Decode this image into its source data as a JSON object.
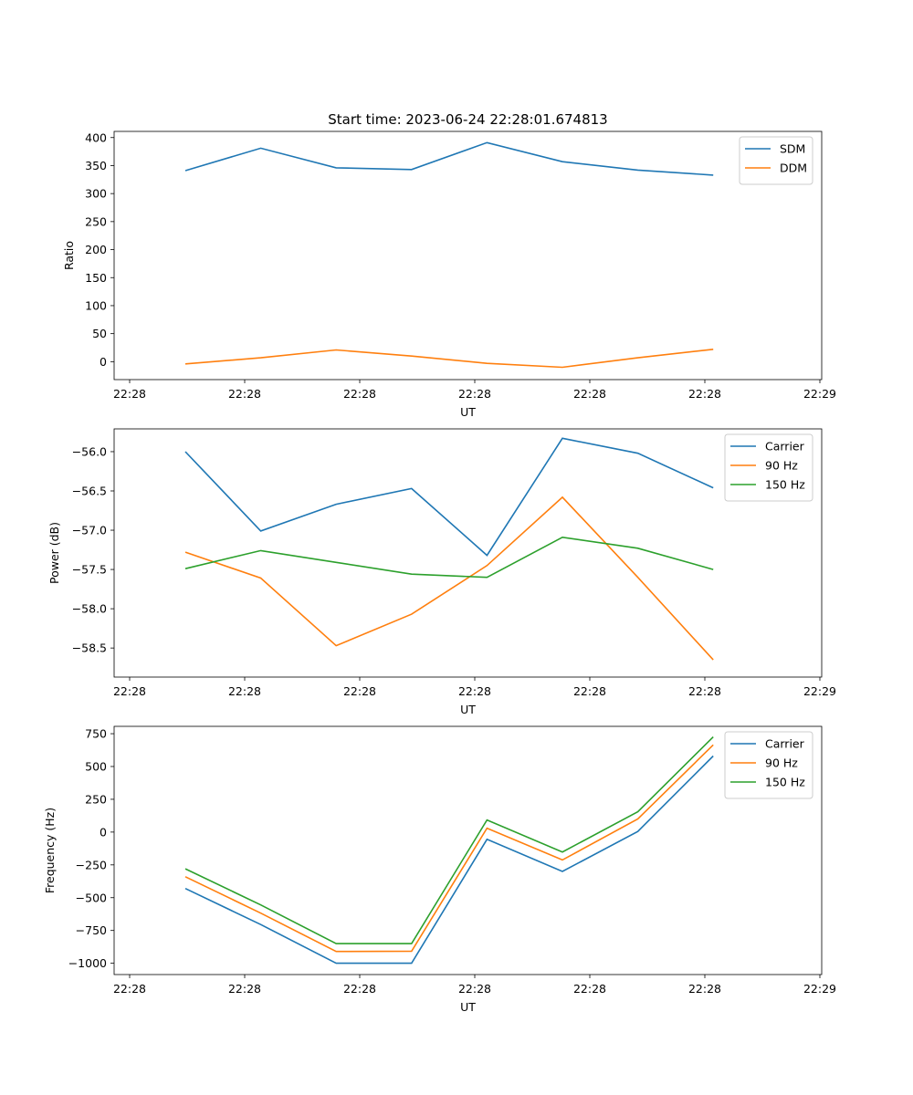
{
  "figure": {
    "title": "Start time: 2023-06-24 22:28:01.674813"
  },
  "chart_data": [
    {
      "type": "line",
      "ylabel": "Ratio",
      "xlabel": "UT",
      "ylim": [
        -32,
        411
      ],
      "yticks": [
        0,
        50,
        100,
        150,
        200,
        250,
        300,
        350,
        400
      ],
      "xtick_labels": [
        "22:28",
        "22:28",
        "22:28",
        "22:28",
        "22:28",
        "22:28",
        "22:28",
        "22:29"
      ],
      "legend": "top-right",
      "x": [
        1,
        2,
        3,
        4,
        5,
        6,
        7,
        8
      ],
      "series": [
        {
          "name": "SDM",
          "color": "#1f77b4",
          "values": [
            341,
            381,
            346,
            343,
            391,
            357,
            342,
            333
          ]
        },
        {
          "name": "DDM",
          "color": "#ff7f0e",
          "values": [
            -4,
            7,
            21,
            10,
            -3,
            -10,
            7,
            22
          ]
        }
      ]
    },
    {
      "type": "line",
      "ylabel": "Power (dB)",
      "xlabel": "UT",
      "ylim": [
        -58.87,
        -55.71
      ],
      "yticks": [
        -58.5,
        -58.0,
        -57.5,
        -57.0,
        -56.5,
        -56.0
      ],
      "ytick_labels": [
        "−58.5",
        "−58.0",
        "−57.5",
        "−57.0",
        "−56.5",
        "−56.0"
      ],
      "xtick_labels": [
        "22:28",
        "22:28",
        "22:28",
        "22:28",
        "22:28",
        "22:28",
        "22:28",
        "22:29"
      ],
      "legend": "top-right",
      "x": [
        1,
        2,
        3,
        4,
        5,
        6,
        7,
        8
      ],
      "series": [
        {
          "name": "Carrier",
          "color": "#1f77b4",
          "values": [
            -56.0,
            -57.01,
            -56.67,
            -56.47,
            -57.32,
            -55.83,
            -56.02,
            -56.46
          ]
        },
        {
          "name": "90 Hz",
          "color": "#ff7f0e",
          "values": [
            -57.28,
            -57.61,
            -58.47,
            -58.07,
            -57.45,
            -56.58,
            -57.6,
            -58.65
          ]
        },
        {
          "name": "150 Hz",
          "color": "#2ca02c",
          "values": [
            -57.49,
            -57.26,
            -57.41,
            -57.56,
            -57.6,
            -57.09,
            -57.23,
            -57.5
          ]
        }
      ]
    },
    {
      "type": "line",
      "ylabel": "Frequency (Hz)",
      "xlabel": "UT",
      "ylim": [
        -1086,
        806
      ],
      "yticks": [
        -1000,
        -750,
        -500,
        -250,
        0,
        250,
        500,
        750
      ],
      "ytick_labels": [
        "−1000",
        "−750",
        "−500",
        "−250",
        "0",
        "250",
        "500",
        "750"
      ],
      "xtick_labels": [
        "22:28",
        "22:28",
        "22:28",
        "22:28",
        "22:28",
        "22:28",
        "22:28",
        "22:29"
      ],
      "legend": "top-right",
      "x": [
        1,
        2,
        3,
        4,
        5,
        6,
        7,
        8
      ],
      "series": [
        {
          "name": "Carrier",
          "color": "#1f77b4",
          "values": [
            -430,
            -705,
            -1000,
            -1000,
            -55,
            -300,
            5,
            580
          ]
        },
        {
          "name": "90 Hz",
          "color": "#ff7f0e",
          "values": [
            -340,
            -618,
            -910,
            -908,
            30,
            -212,
            100,
            665
          ]
        },
        {
          "name": "150 Hz",
          "color": "#2ca02c",
          "values": [
            -280,
            -555,
            -850,
            -850,
            92,
            -152,
            155,
            725
          ]
        }
      ]
    }
  ]
}
